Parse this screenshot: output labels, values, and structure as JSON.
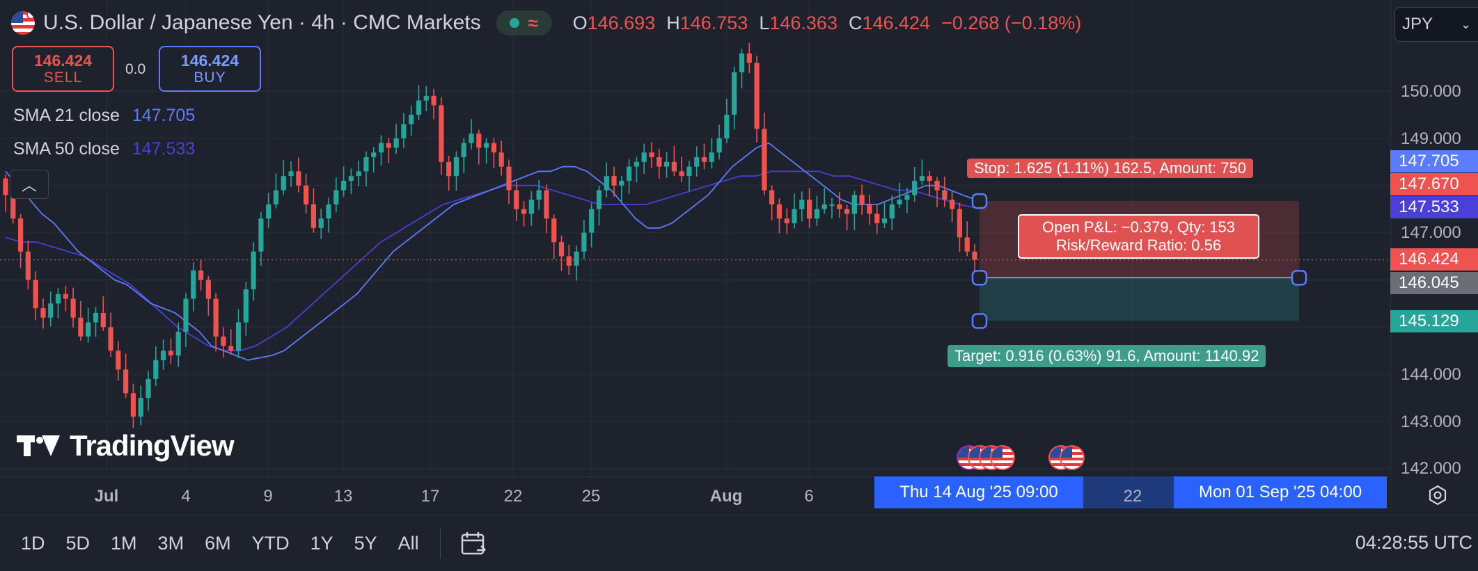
{
  "header": {
    "title": "U.S. Dollar / Japanese Yen · 4h · CMC Markets",
    "ohlc": {
      "o_label": "O",
      "o": "146.693",
      "h_label": "H",
      "h": "146.753",
      "l_label": "L",
      "l": "146.363",
      "c_label": "C",
      "c": "146.424",
      "change": "−0.268 (−0.18%)"
    },
    "currency_button": "JPY"
  },
  "trade_panel": {
    "sell_price": "146.424",
    "sell_label": "SELL",
    "spread": "0.0",
    "buy_price": "146.424",
    "buy_label": "BUY"
  },
  "indicators": [
    {
      "name": "SMA 21 close",
      "value": "147.705",
      "color": "#5b7cff"
    },
    {
      "name": "SMA 50 close",
      "value": "147.533",
      "color": "#4a3fd6"
    }
  ],
  "branding": {
    "logo_text": "TradingView"
  },
  "position_tool": {
    "stop_label": "Stop: 1.625 (1.11%) 162.5, Amount: 750",
    "target_label": "Target: 0.916 (0.63%) 91.6, Amount: 1140.92",
    "pnl_line1": "Open P&L: −0.379, Qty: 153",
    "pnl_line2": "Risk/Reward Ratio: 0.56",
    "entry": 146.045,
    "stop": 147.67,
    "target": 145.129,
    "start_time": "Thu 14 Aug '25 09:00",
    "end_time": "Mon 01 Sep '25 04:00"
  },
  "price_axis": {
    "ticks": [
      "150.000",
      "149.000",
      "147.000",
      "144.000",
      "143.000",
      "142.000"
    ],
    "tags": [
      {
        "label": "147.705",
        "color": "#5b7cff"
      },
      {
        "label": "147.670",
        "color": "#ef5350"
      },
      {
        "label": "147.533",
        "color": "#4a3fd6"
      },
      {
        "label": "146.424",
        "color": "#ef5350"
      },
      {
        "label": "146.045",
        "color": "#6b6e76"
      },
      {
        "label": "145.129",
        "color": "#26a69a"
      }
    ]
  },
  "time_axis": {
    "labels": [
      "Jul",
      "4",
      "9",
      "13",
      "17",
      "22",
      "25",
      "Aug",
      "6",
      "22"
    ],
    "highlight_start": "Thu 14 Aug '25  09:00",
    "highlight_end": "Mon 01 Sep '25  04:00"
  },
  "bottom_bar": {
    "ranges": [
      "1D",
      "5D",
      "1M",
      "3M",
      "6M",
      "YTD",
      "1Y",
      "5Y",
      "All"
    ],
    "clock": "04:28:55 UTC"
  },
  "colors": {
    "up": "#26a69a",
    "down": "#ef5350",
    "background": "#1e222d"
  },
  "chart_data": {
    "type": "candlestick",
    "title": "U.S. Dollar / Japanese Yen · 4h · CMC Markets",
    "x_label_ticks": [
      "Jul",
      "4",
      "9",
      "13",
      "17",
      "22",
      "25",
      "Aug",
      "6"
    ],
    "ylim": [
      142.0,
      151.0
    ],
    "closes": [
      147.8,
      147.3,
      146.6,
      146.0,
      145.4,
      145.2,
      145.5,
      145.7,
      145.6,
      145.2,
      144.8,
      145.1,
      145.3,
      145.0,
      144.5,
      144.1,
      143.6,
      143.1,
      143.5,
      143.9,
      144.3,
      144.5,
      144.4,
      144.9,
      145.6,
      146.2,
      146.0,
      145.6,
      144.8,
      144.6,
      144.5,
      145.1,
      145.8,
      146.6,
      147.3,
      147.6,
      147.9,
      148.2,
      148.3,
      148.0,
      147.6,
      147.1,
      147.3,
      147.6,
      147.9,
      148.1,
      148.2,
      148.3,
      148.6,
      148.7,
      148.9,
      148.8,
      149.0,
      149.3,
      149.5,
      149.8,
      149.9,
      149.7,
      148.5,
      148.2,
      148.6,
      148.9,
      149.1,
      148.8,
      148.9,
      148.7,
      148.4,
      147.9,
      147.5,
      147.4,
      147.7,
      147.9,
      147.3,
      146.8,
      146.5,
      146.3,
      146.6,
      147.0,
      147.5,
      147.9,
      148.2,
      148.0,
      148.1,
      148.4,
      148.5,
      148.7,
      148.6,
      148.4,
      148.5,
      148.3,
      148.2,
      148.4,
      148.6,
      148.5,
      148.7,
      149.0,
      149.5,
      150.4,
      150.8,
      150.6,
      149.2,
      147.9,
      147.6,
      147.3,
      147.2,
      147.5,
      147.7,
      147.3,
      147.5,
      147.6,
      147.6,
      147.5,
      147.4,
      147.8,
      147.6,
      147.4,
      147.2,
      147.3,
      147.6,
      147.7,
      147.8,
      148.1,
      148.2,
      148.1,
      147.9,
      147.7,
      147.5,
      146.9,
      146.6,
      146.424
    ],
    "sma21": [
      148.3,
      148.0,
      147.7,
      147.4,
      147.2,
      146.9,
      146.6,
      146.4,
      146.2,
      146.0,
      145.9,
      145.7,
      145.5,
      145.4,
      145.3,
      145.1,
      144.9,
      144.6,
      144.5,
      144.4,
      144.3,
      144.35,
      144.4,
      144.5,
      144.7,
      144.9,
      145.1,
      145.3,
      145.5,
      145.7,
      146.0,
      146.3,
      146.6,
      146.8,
      147.0,
      147.2,
      147.4,
      147.6,
      147.7,
      147.8,
      147.9,
      148.0,
      148.1,
      148.2,
      148.3,
      148.3,
      148.4,
      148.4,
      148.3,
      148.1,
      147.9,
      147.6,
      147.3,
      147.1,
      147.1,
      147.2,
      147.4,
      147.6,
      147.8,
      148.1,
      148.4,
      148.6,
      148.8,
      148.9,
      148.7,
      148.5,
      148.3,
      148.1,
      147.9,
      147.7,
      147.6,
      147.6,
      147.6,
      147.7,
      147.8,
      147.9,
      148.0,
      148.0,
      147.9,
      147.8,
      147.705
    ],
    "sma50": [
      146.9,
      146.8,
      146.8,
      146.7,
      146.6,
      146.5,
      146.3,
      146.1,
      145.9,
      145.6,
      145.3,
      145.0,
      144.8,
      144.6,
      144.5,
      144.5,
      144.6,
      144.8,
      145.0,
      145.3,
      145.6,
      145.9,
      146.2,
      146.5,
      146.8,
      147.0,
      147.2,
      147.4,
      147.6,
      147.7,
      147.8,
      147.9,
      148.0,
      148.0,
      148.0,
      147.9,
      147.8,
      147.7,
      147.6,
      147.6,
      147.6,
      147.6,
      147.7,
      147.8,
      147.9,
      148.0,
      148.1,
      148.2,
      148.2,
      148.3,
      148.3,
      148.3,
      148.3,
      148.2,
      148.2,
      148.1,
      148.0,
      147.9,
      147.9,
      147.8,
      147.7,
      147.6,
      147.533
    ]
  }
}
